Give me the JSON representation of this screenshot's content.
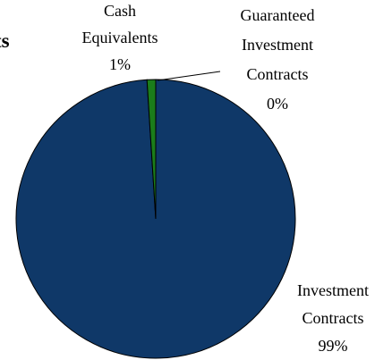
{
  "chart_data": {
    "type": "pie",
    "title": "ts",
    "categories": [
      "Investment Contracts",
      "Cash Equivalents",
      "Guaranteed Investment Contracts"
    ],
    "values": [
      99,
      1,
      0
    ],
    "value_labels": [
      "99%",
      "1%",
      "0%"
    ],
    "colors": [
      "#0f3868",
      "#1b7d1b",
      "#b0b0b0"
    ]
  }
}
